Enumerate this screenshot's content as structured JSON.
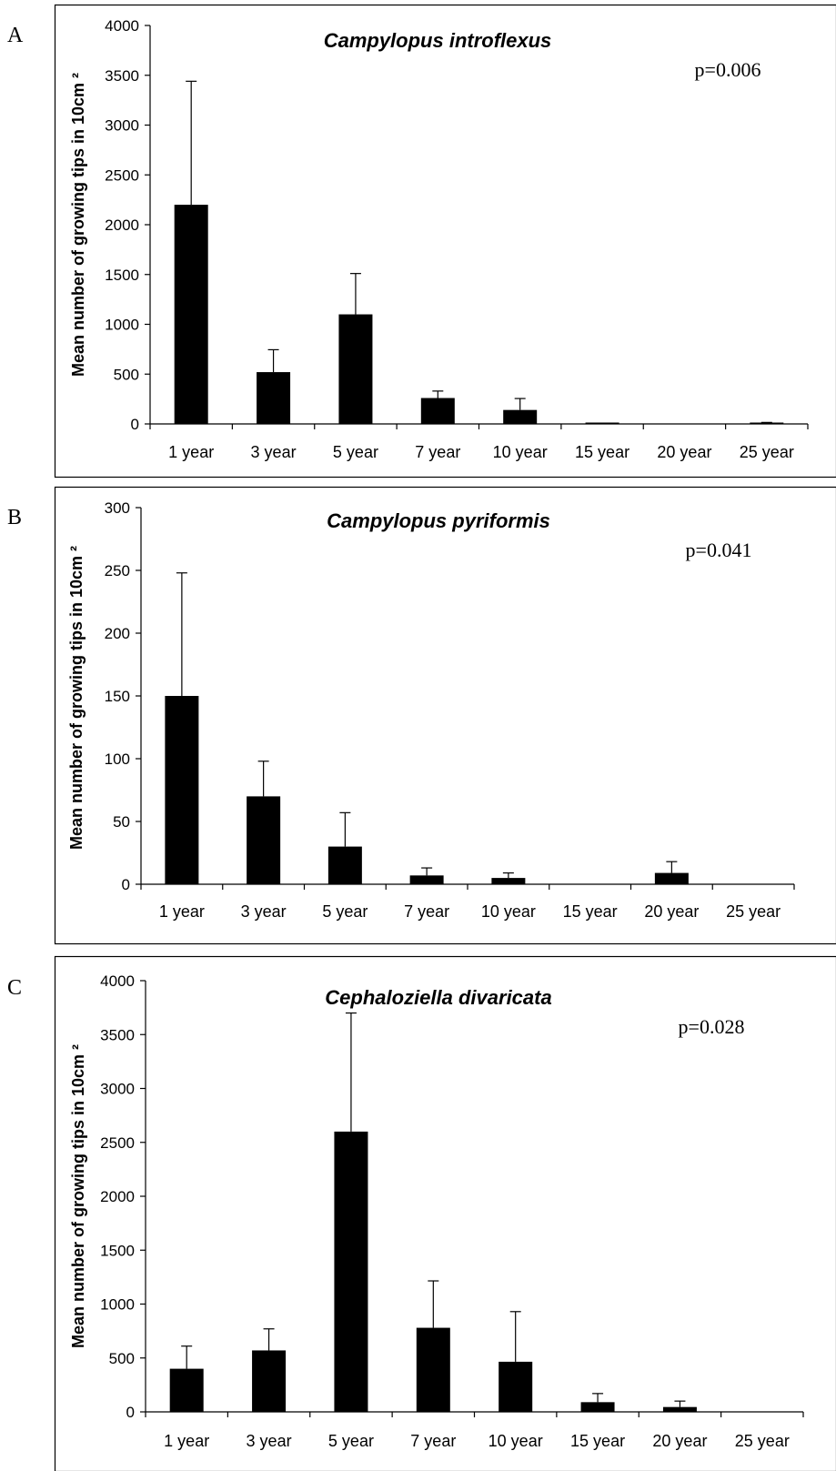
{
  "chart_data": [
    {
      "panel": "A",
      "type": "bar",
      "title": "Campylopus introflexus",
      "annotation": "p=0.006",
      "ylabel": "Mean number of growing tips in 10cm ²",
      "xlabel": "",
      "ylim": [
        0,
        4000
      ],
      "yticks": [
        0,
        500,
        1000,
        1500,
        2000,
        2500,
        3000,
        3500,
        4000
      ],
      "categories": [
        "1 year",
        "3 year",
        "5 year",
        "7 year",
        "10 year",
        "15 year",
        "20 year",
        "25 year"
      ],
      "values": [
        2200,
        520,
        1100,
        260,
        140,
        5,
        0,
        10
      ],
      "error_upper": [
        3440,
        745,
        1510,
        330,
        255,
        8,
        0,
        15
      ],
      "legend": "none",
      "grid": false
    },
    {
      "panel": "B",
      "type": "bar",
      "title": "Campylopus pyriformis",
      "annotation": "p=0.041",
      "ylabel": "Mean number of growing tips in 10cm ²",
      "xlabel": "",
      "ylim": [
        0,
        300
      ],
      "yticks": [
        0,
        50,
        100,
        150,
        200,
        250,
        300
      ],
      "categories": [
        "1 year",
        "3 year",
        "5 year",
        "7 year",
        "10 year",
        "15 year",
        "20 year",
        "25 year"
      ],
      "values": [
        150,
        70,
        30,
        7,
        5,
        0,
        9,
        0
      ],
      "error_upper": [
        248,
        98,
        57,
        13,
        9,
        0,
        18,
        0
      ],
      "legend": "none",
      "grid": false
    },
    {
      "panel": "C",
      "type": "bar",
      "title": "Cephaloziella divaricata",
      "annotation": "p=0.028",
      "ylabel": "Mean number of growing tips in 10cm ²",
      "xlabel": "",
      "ylim": [
        0,
        4000
      ],
      "yticks": [
        0,
        500,
        1000,
        1500,
        2000,
        2500,
        3000,
        3500,
        4000
      ],
      "categories": [
        "1 year",
        "3 year",
        "5 year",
        "7 year",
        "10 year",
        "15 year",
        "20 year",
        "25 year"
      ],
      "values": [
        400,
        570,
        2600,
        780,
        465,
        90,
        45,
        0
      ],
      "error_upper": [
        610,
        770,
        3700,
        1215,
        930,
        170,
        100,
        0
      ],
      "legend": "none",
      "grid": false
    }
  ]
}
